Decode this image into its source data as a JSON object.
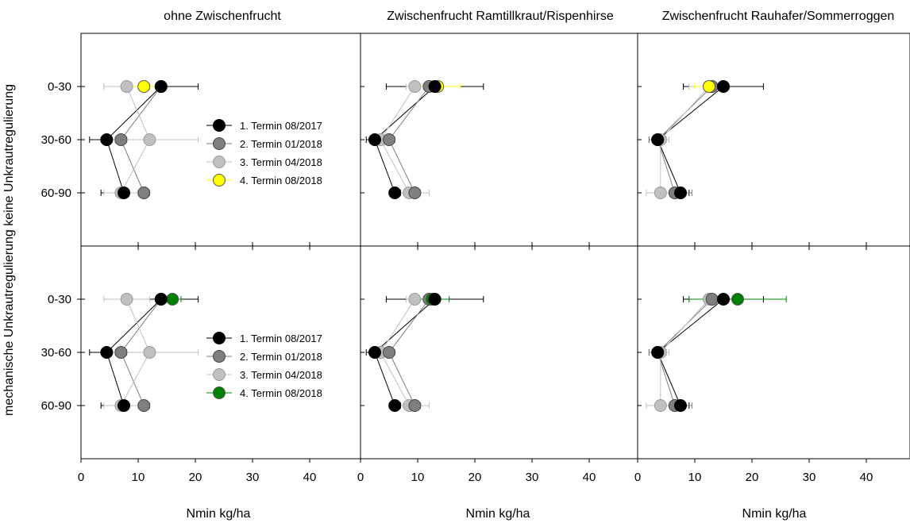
{
  "chart_data": {
    "type": "scatter",
    "x_unit_label": "Nmin kg/ha",
    "x_ticks": [
      0,
      10,
      20,
      30,
      40
    ],
    "x_range": [
      0,
      48
    ],
    "y_categories": [
      "0-30",
      "30-60",
      "60-90"
    ],
    "row_label": "mechanische Unkrautregulierung keine Unkrautregulierung",
    "columns": [
      "ohne Zwischenfrucht",
      "Zwischenfrucht Ramtillkraut/Rispenhirse",
      "Zwischenfrucht Rauhafer/Sommerroggen"
    ],
    "legend_labels": [
      "1. Termin 08/2017",
      "2. Termin 01/2018",
      "3. Termin 04/2018",
      "4. Termin 08/2018"
    ],
    "colors": {
      "termin1": "#000000",
      "termin2": "#7f7f7f",
      "termin3": "#c0c0c0",
      "termin4_top": "#ffff00",
      "termin4_bottom": "#008000"
    },
    "panels": [
      {
        "row": "keine Unkrautregulierung",
        "column": "ohne Zwischenfrucht",
        "legend": true,
        "series": [
          {
            "color_key": "termin1",
            "values": [
              14,
              4.5,
              7.5
            ],
            "err": [
              6.5,
              3,
              4
            ]
          },
          {
            "color_key": "termin2",
            "values": [
              14,
              7,
              11
            ],
            "err": [
              0.8,
              1,
              1
            ]
          },
          {
            "color_key": "termin3",
            "values": [
              8,
              12,
              7
            ],
            "err": [
              4,
              8.5,
              3
            ]
          },
          {
            "color_key": "termin4_top",
            "values": [
              11
            ],
            "err": [
              3
            ]
          }
        ]
      },
      {
        "row": "keine Unkrautregulierung",
        "column": "Zwischenfrucht Ramtillkraut/Rispenhirse",
        "legend": false,
        "series": [
          {
            "color_key": "termin1",
            "values": [
              13,
              2.5,
              6
            ],
            "err": [
              8.5,
              1.5,
              1
            ]
          },
          {
            "color_key": "termin2",
            "values": [
              12,
              5,
              9.5
            ],
            "err": [
              1,
              1,
              1
            ]
          },
          {
            "color_key": "termin3",
            "values": [
              9.5,
              3.5,
              8.5
            ],
            "err": [
              1.5,
              1.5,
              3.5
            ]
          },
          {
            "color_key": "termin4_top",
            "values": [
              13.5
            ],
            "err": [
              4
            ]
          }
        ]
      },
      {
        "row": "keine Unkrautregulierung",
        "column": "Zwischenfrucht Rauhafer/Sommerroggen",
        "legend": false,
        "series": [
          {
            "color_key": "termin1",
            "values": [
              15,
              3.5,
              7.5
            ],
            "err": [
              7,
              1.5,
              1.5
            ]
          },
          {
            "color_key": "termin2",
            "values": [
              13,
              3.5,
              6.5
            ],
            "err": [
              1,
              1.5,
              3
            ]
          },
          {
            "color_key": "termin3",
            "values": [
              12.5,
              4,
              4
            ],
            "err": [
              3.5,
              1.5,
              2.5
            ]
          },
          {
            "color_key": "termin4_top",
            "values": [
              12.5
            ],
            "err": [
              2.5
            ]
          }
        ]
      },
      {
        "row": "mechanische Unkrautregulierung",
        "column": "ohne Zwischenfrucht",
        "legend": true,
        "series": [
          {
            "color_key": "termin1",
            "values": [
              14,
              4.5,
              7.5
            ],
            "err": [
              6.5,
              3,
              4
            ]
          },
          {
            "color_key": "termin2",
            "values": [
              14,
              7,
              11
            ],
            "err": [
              0.8,
              1,
              1
            ]
          },
          {
            "color_key": "termin3",
            "values": [
              8,
              12,
              7
            ],
            "err": [
              4,
              8.5,
              3
            ]
          },
          {
            "color_key": "termin4_bottom",
            "values": [
              16
            ],
            "err": [
              1.5
            ]
          }
        ]
      },
      {
        "row": "mechanische Unkrautregulierung",
        "column": "Zwischenfrucht Ramtillkraut/Rispenhirse",
        "legend": false,
        "series": [
          {
            "color_key": "termin1",
            "values": [
              13,
              2.5,
              6
            ],
            "err": [
              8.5,
              1.5,
              1
            ]
          },
          {
            "color_key": "termin2",
            "values": [
              12,
              5,
              9.5
            ],
            "err": [
              1,
              1,
              1
            ]
          },
          {
            "color_key": "termin3",
            "values": [
              9.5,
              3.5,
              8.5
            ],
            "err": [
              1.5,
              1.5,
              3.5
            ]
          },
          {
            "color_key": "termin4_bottom",
            "values": [
              12.5
            ],
            "err": [
              3
            ]
          }
        ]
      },
      {
        "row": "mechanische Unkrautregulierung",
        "column": "Zwischenfrucht Rauhafer/Sommerroggen",
        "legend": false,
        "series": [
          {
            "color_key": "termin1",
            "values": [
              15,
              3.5,
              7.5
            ],
            "err": [
              7,
              1.5,
              1.5
            ]
          },
          {
            "color_key": "termin2",
            "values": [
              13,
              3.5,
              6.5
            ],
            "err": [
              1,
              1.5,
              3
            ]
          },
          {
            "color_key": "termin3",
            "values": [
              12.5,
              4,
              4
            ],
            "err": [
              3.5,
              1.5,
              2.5
            ]
          },
          {
            "color_key": "termin4_bottom",
            "values": [
              17.5
            ],
            "err": [
              8.5
            ]
          }
        ]
      }
    ]
  }
}
